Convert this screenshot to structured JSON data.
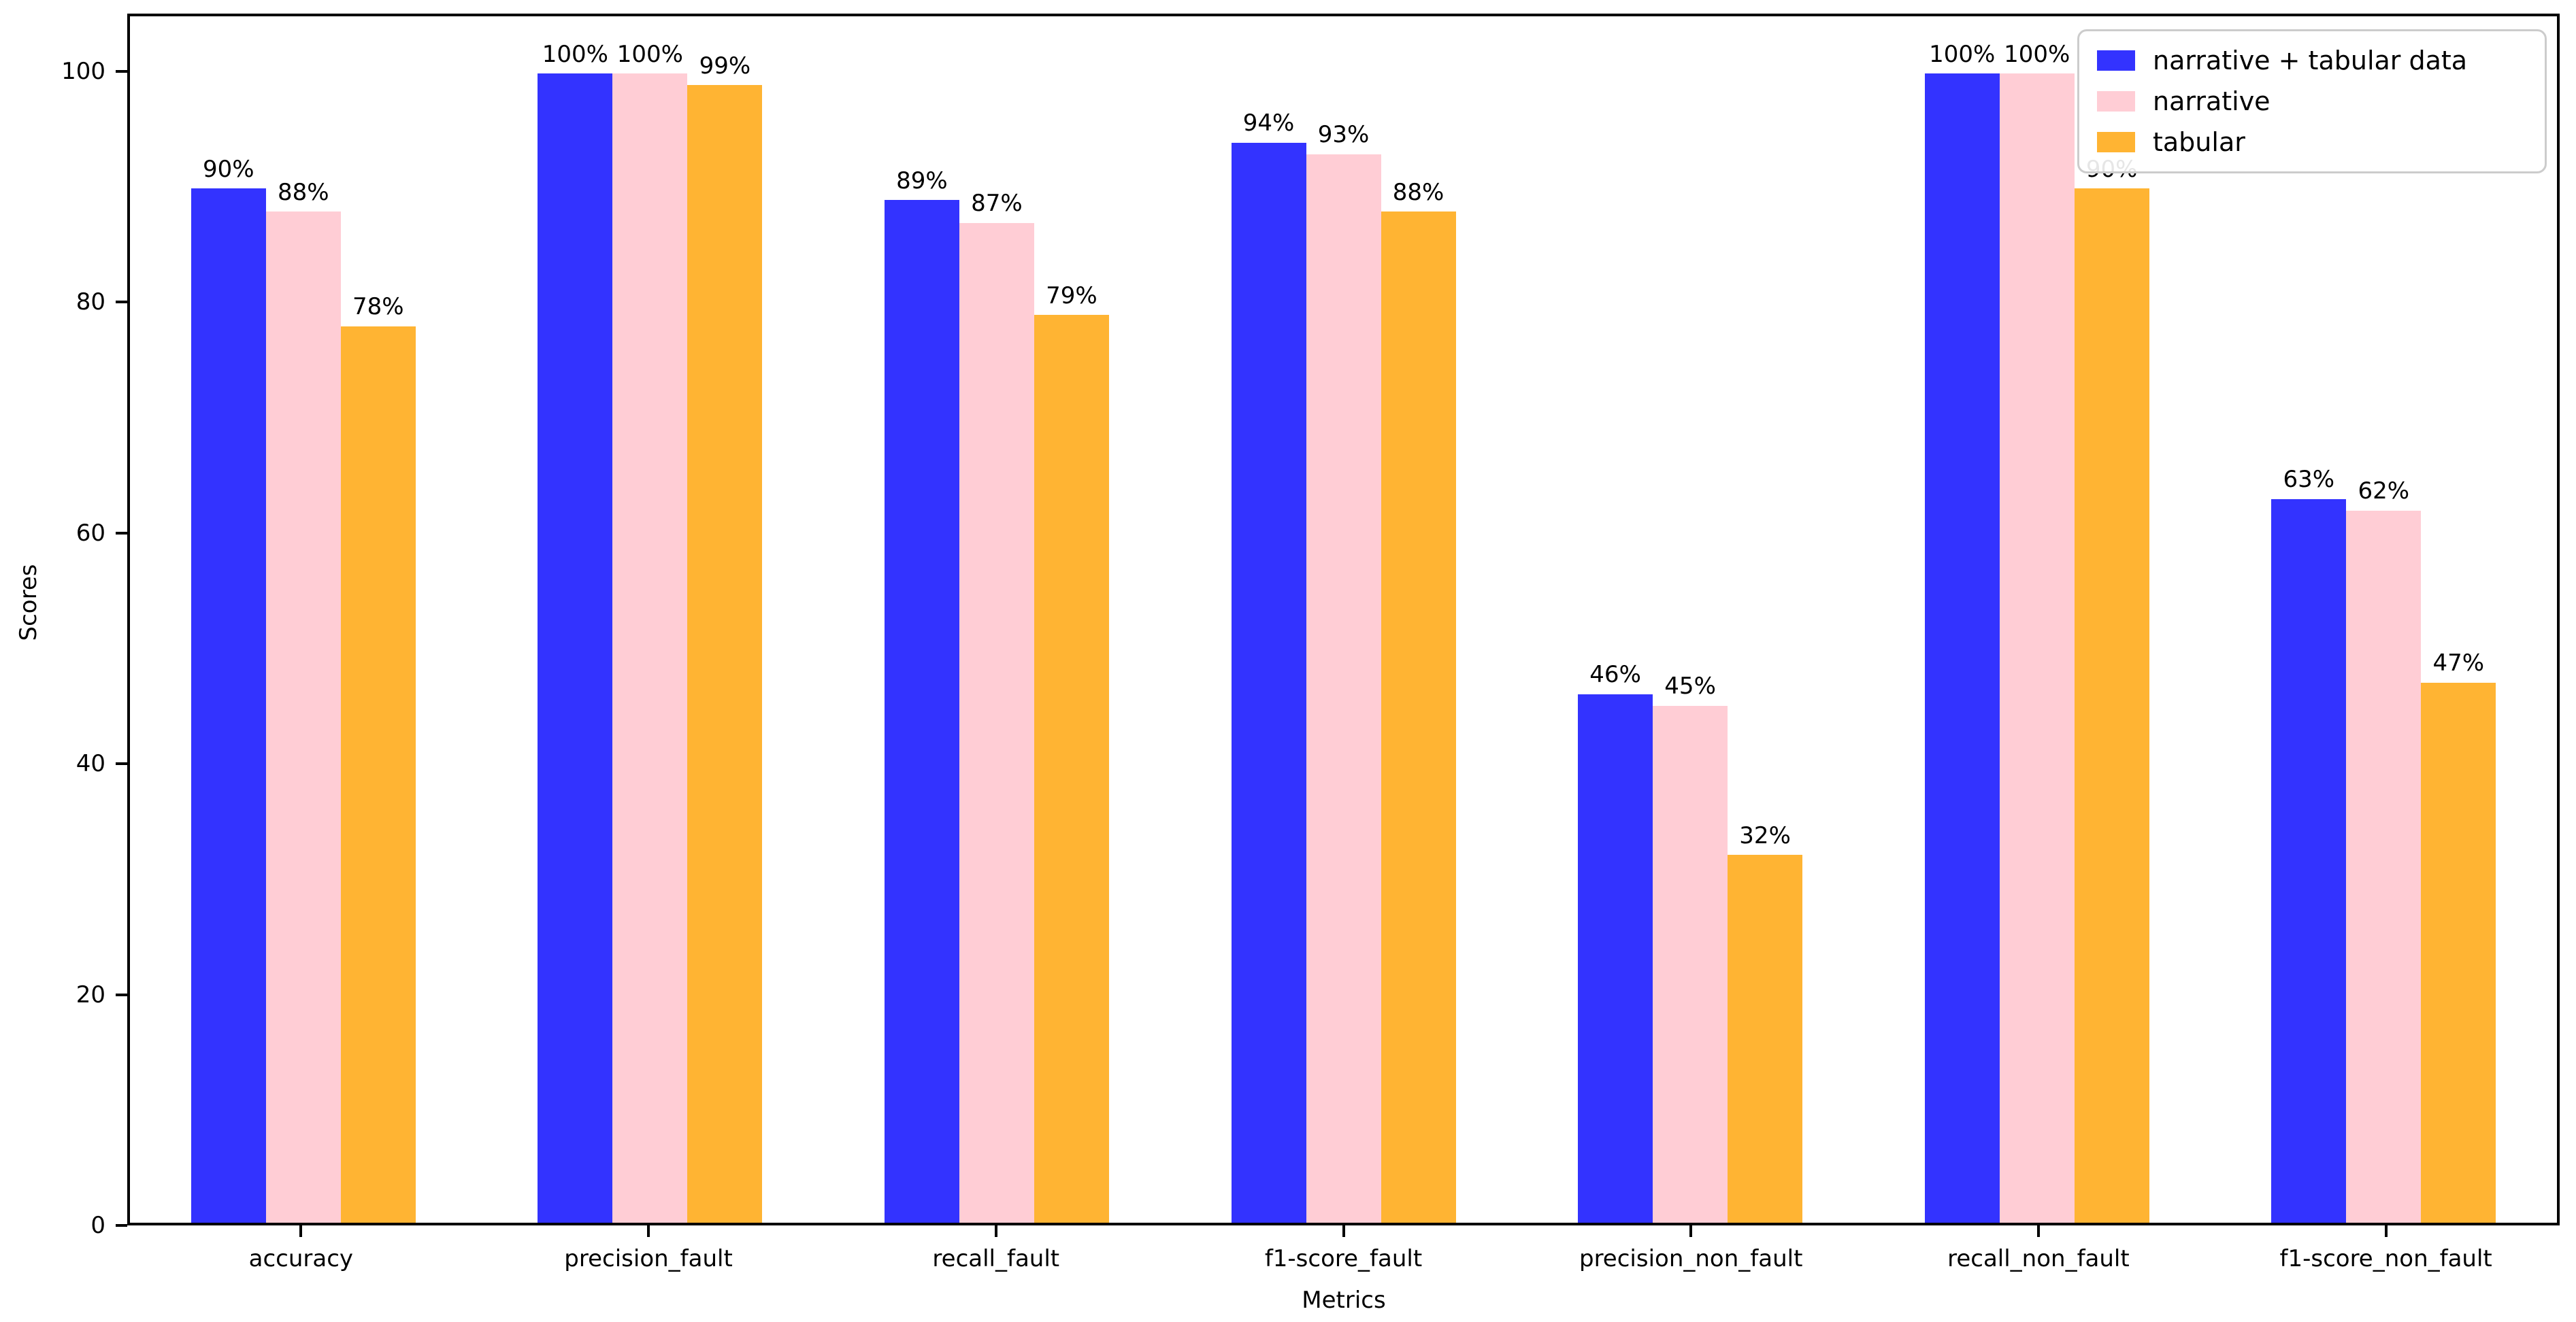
{
  "chart_data": {
    "type": "bar",
    "title": "",
    "xlabel": "Metrics",
    "ylabel": "Scores",
    "categories": [
      "accuracy",
      "precision_fault",
      "recall_fault",
      "f1-score_fault",
      "precision_non_fault",
      "recall_non_fault",
      "f1-score_non_fault"
    ],
    "series": [
      {
        "name": "narrative + tabular data",
        "color": "#3333ff",
        "values": [
          90,
          100,
          89,
          94,
          46,
          100,
          63
        ]
      },
      {
        "name": "narrative",
        "color": "#ffcdd5",
        "values": [
          88,
          100,
          87,
          93,
          45,
          100,
          62
        ]
      },
      {
        "name": "tabular",
        "color": "#ffb433",
        "values": [
          78,
          99,
          79,
          88,
          32,
          90,
          47
        ]
      }
    ],
    "value_label_suffix": "%",
    "yticks": [
      0,
      20,
      40,
      60,
      80,
      100
    ],
    "ylim": [
      0,
      105
    ],
    "grid": false,
    "legend_position": "upper right",
    "colors": {
      "spine": "#000000",
      "text": "#000000",
      "legend_border": "#cccccc",
      "background": "#ffffff"
    }
  }
}
